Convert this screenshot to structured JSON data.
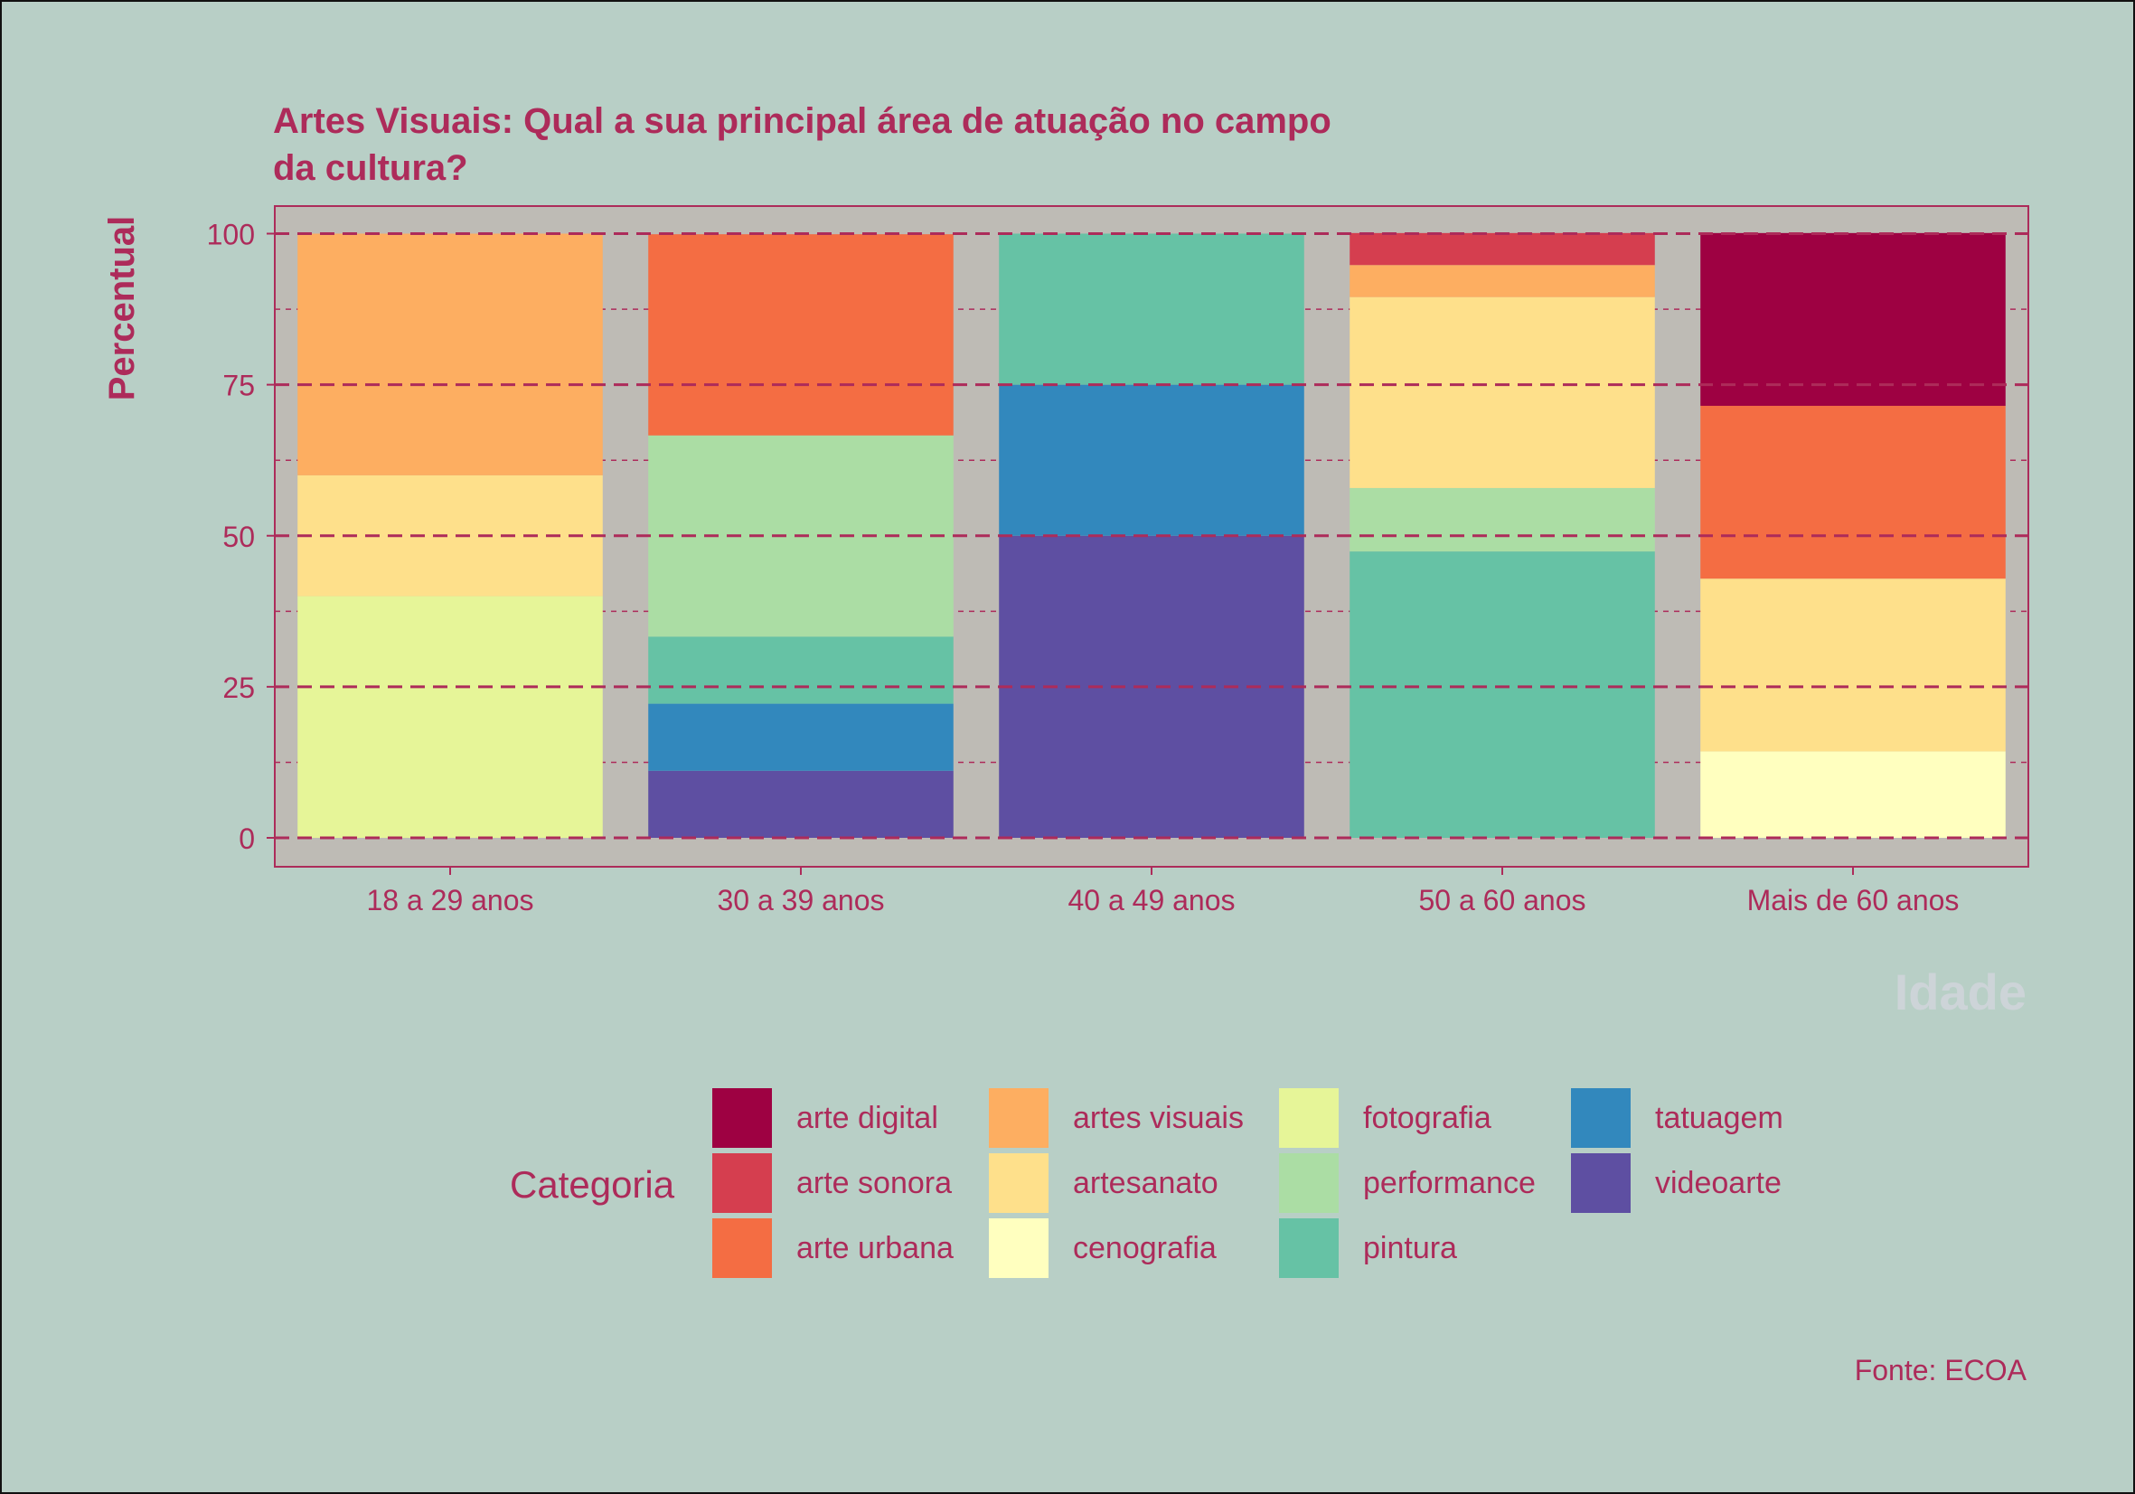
{
  "chart_data": {
    "type": "bar",
    "stacked": true,
    "title": "Artes Visuais: Qual a sua principal área de atuação no campo da cultura?",
    "title_lines": [
      "Artes Visuais: Qual a sua principal área de atuação no campo",
      "da cultura?"
    ],
    "xlabel": "Idade",
    "ylabel": "Percentual",
    "ylim": [
      0,
      100
    ],
    "yticks": [
      0,
      25,
      50,
      75,
      100
    ],
    "grid": true,
    "legend_position": "bottom",
    "legend_title": "Categoria",
    "caption": "Fonte: ECOA",
    "categories": [
      "18 a 29 anos",
      "30 a 39 anos",
      "40 a 49 anos",
      "50 a 60 anos",
      "Mais de 60 anos"
    ],
    "series": [
      {
        "name": "arte digital",
        "color": "#9e0142",
        "values": [
          0,
          0,
          0,
          0,
          28.6
        ]
      },
      {
        "name": "arte sonora",
        "color": "#d53e4f",
        "values": [
          0,
          0,
          0,
          5.3,
          0
        ]
      },
      {
        "name": "arte urbana",
        "color": "#f46d43",
        "values": [
          0,
          33.3,
          0,
          0,
          28.6
        ]
      },
      {
        "name": "artes visuais",
        "color": "#fdae61",
        "values": [
          40,
          0,
          0,
          5.3,
          0
        ]
      },
      {
        "name": "artesanato",
        "color": "#fee08b",
        "values": [
          20,
          0,
          0,
          31.6,
          28.6
        ]
      },
      {
        "name": "cenografia",
        "color": "#ffffbf",
        "values": [
          0,
          0,
          0,
          0,
          14.3
        ]
      },
      {
        "name": "fotografia",
        "color": "#e6f598",
        "values": [
          40,
          0,
          0,
          0,
          0
        ]
      },
      {
        "name": "performance",
        "color": "#abdda4",
        "values": [
          0,
          33.3,
          0,
          10.5,
          0
        ]
      },
      {
        "name": "pintura",
        "color": "#66c2a5",
        "values": [
          0,
          11.1,
          25,
          47.4,
          0
        ]
      },
      {
        "name": "tatuagem",
        "color": "#3288bd",
        "values": [
          0,
          11.1,
          25,
          0,
          0
        ]
      },
      {
        "name": "videoarte",
        "color": "#5e4fa2",
        "values": [
          0,
          11.1,
          50,
          0,
          0
        ]
      }
    ],
    "colors": {
      "background": "#b8cfc6",
      "panel": "#bebbb5",
      "accent": "#ad2b5a",
      "xlabel": "#cdd4d8"
    }
  }
}
